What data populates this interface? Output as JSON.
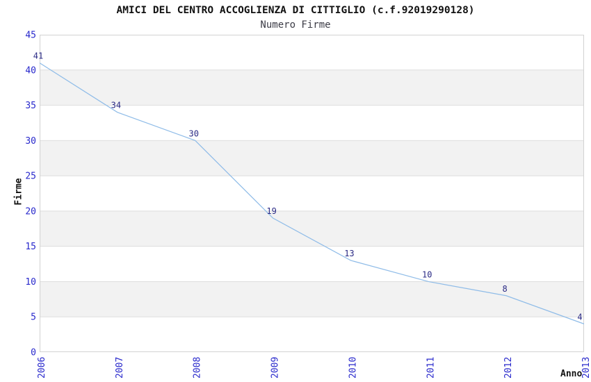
{
  "header": {
    "title": "AMICI DEL CENTRO ACCOGLIENZA DI CITTIGLIO (c.f.92019290128)",
    "subtitle": "Numero Firme"
  },
  "chart_data": {
    "type": "line",
    "title": "AMICI DEL CENTRO ACCOGLIENZA DI CITTIGLIO (c.f.92019290128)",
    "subtitle": "Numero Firme",
    "xlabel": "Anno",
    "ylabel": "Firme",
    "x": [
      "2006",
      "2007",
      "2008",
      "2009",
      "2010",
      "2011",
      "2012",
      "2013"
    ],
    "values": [
      41,
      34,
      30,
      19,
      13,
      10,
      8,
      4
    ],
    "ylim": [
      0,
      45
    ],
    "yticks": [
      0,
      5,
      10,
      15,
      20,
      25,
      30,
      35,
      40,
      45
    ],
    "grid": "horizontal-bands-alternating",
    "legend": "none",
    "data_labels_shown": true,
    "colors": {
      "line": "#8FBCE8",
      "tick_label": "#2828CC",
      "data_label": "#2A2A85",
      "band_gray": "#F2F2F2",
      "band_white": "#FFFFFF",
      "grid_line": "#DEDEDE",
      "border": "#D2D2D2",
      "title": "#111111",
      "subtitle": "#3C3C46",
      "axis_label": "#111111"
    }
  }
}
